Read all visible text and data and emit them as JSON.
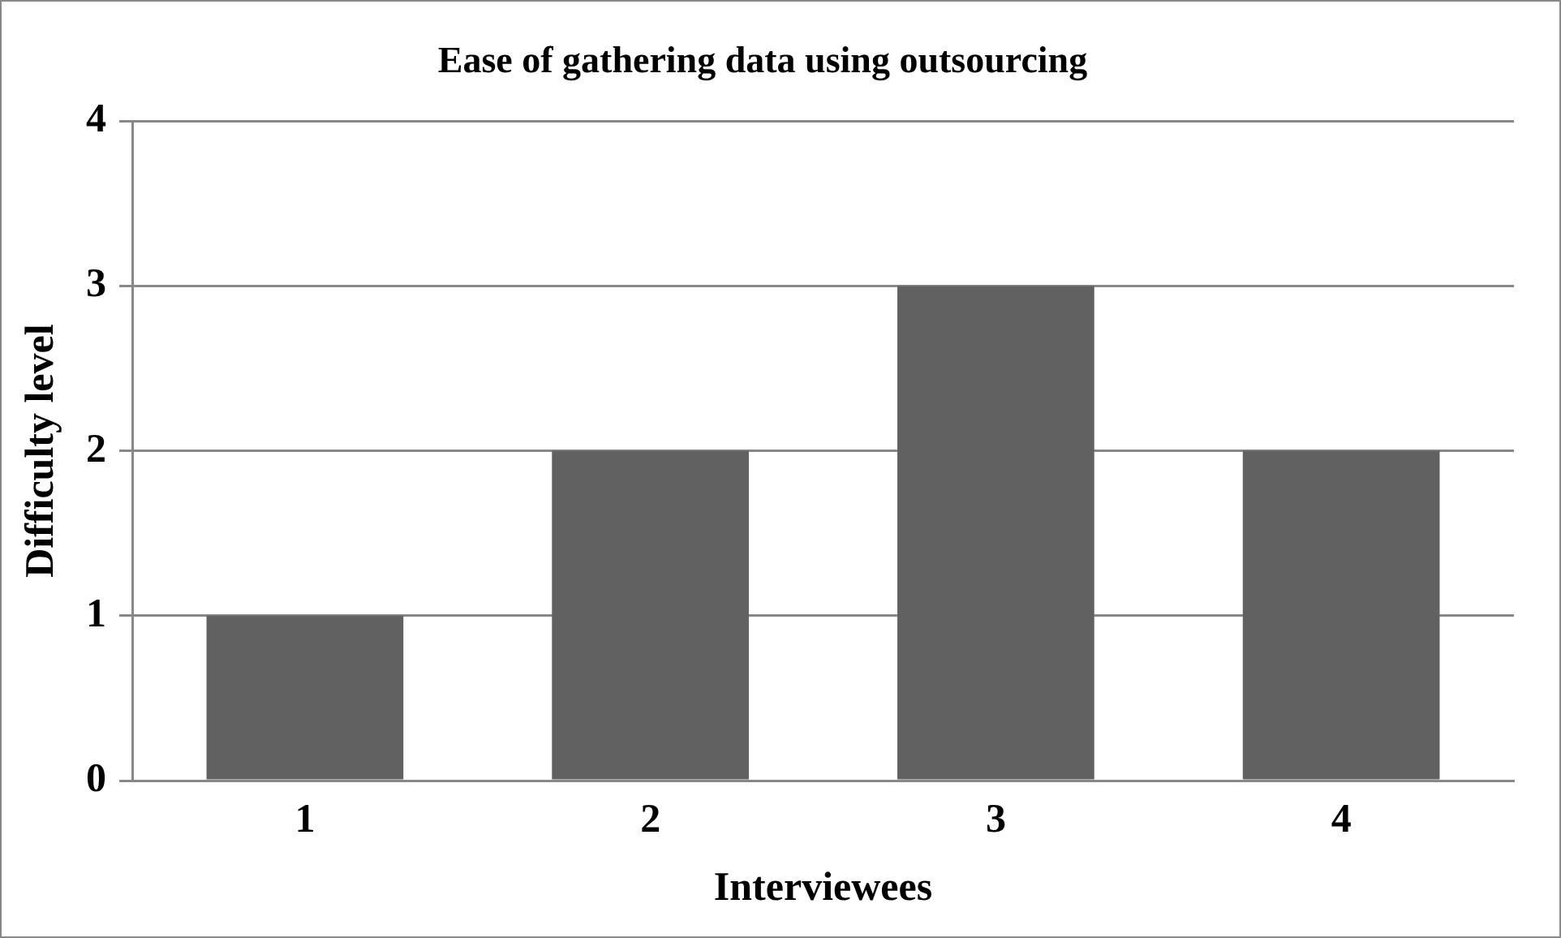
{
  "chart_data": {
    "type": "bar",
    "title": "Ease of gathering data using outsourcing",
    "xlabel": "Interviewees",
    "ylabel": "Difficulty level",
    "categories": [
      "1",
      "2",
      "3",
      "4"
    ],
    "values": [
      1,
      2,
      3,
      2
    ],
    "color": "#616161",
    "ylim": [
      0,
      4
    ],
    "yticks": [
      0,
      1,
      2,
      3,
      4
    ],
    "grid": "y",
    "legend": false
  }
}
